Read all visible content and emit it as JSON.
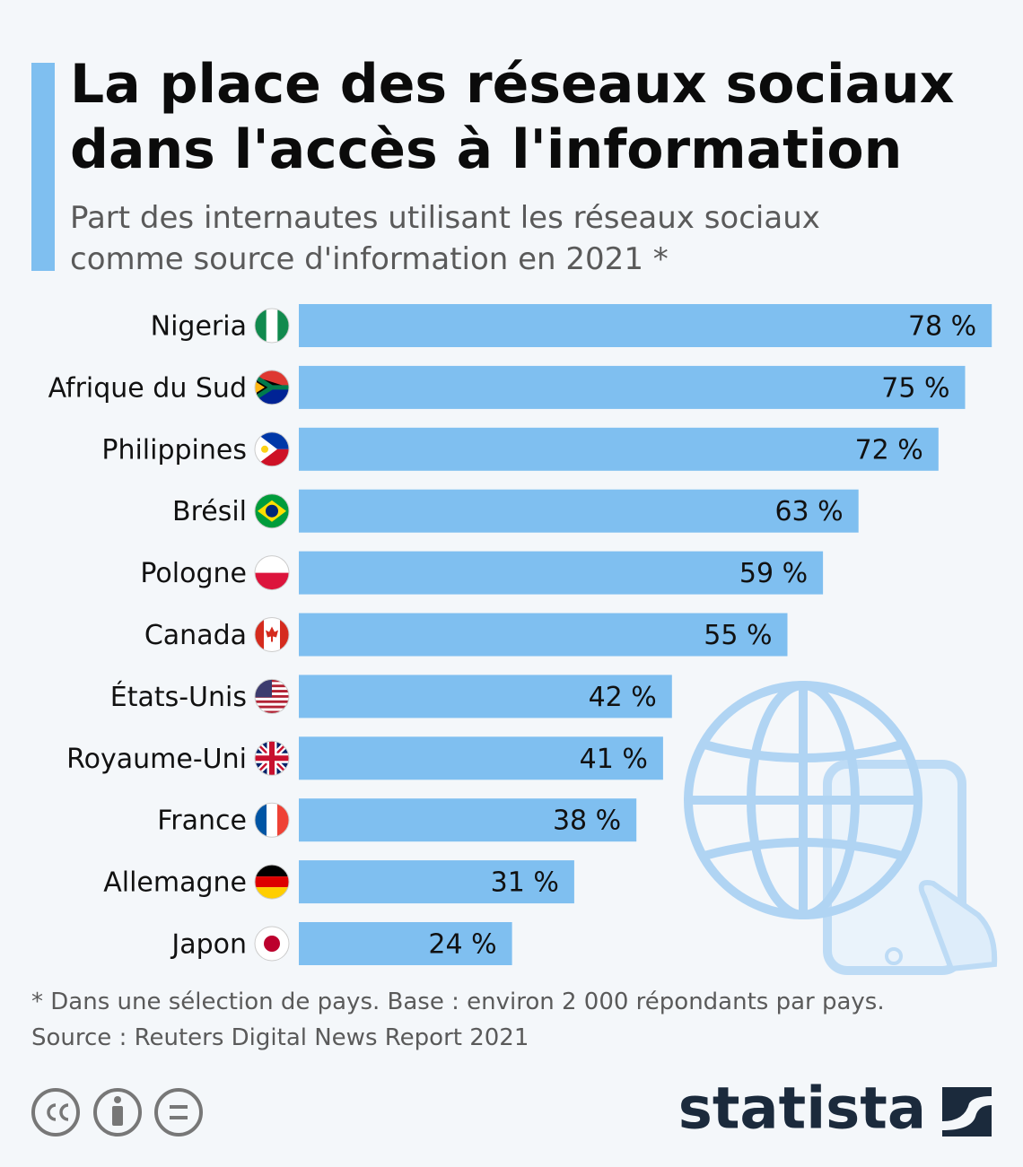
{
  "chart_data": {
    "type": "bar",
    "orientation": "horizontal",
    "title": "La place des réseaux sociaux dans l'accès à l'information",
    "subtitle": "Part des internautes utilisant les réseaux sociaux comme source d'information en 2021 *",
    "categories": [
      "Nigeria",
      "Afrique du Sud",
      "Philippines",
      "Brésil",
      "Pologne",
      "Canada",
      "États-Unis",
      "Royaume-Uni",
      "France",
      "Allemagne",
      "Japon"
    ],
    "values": [
      78,
      75,
      72,
      63,
      59,
      55,
      42,
      41,
      38,
      31,
      24
    ],
    "value_labels": [
      "78 %",
      "75 %",
      "72 %",
      "63 %",
      "59 %",
      "55 %",
      "42 %",
      "41 %",
      "38 %",
      "31 %",
      "24 %"
    ],
    "color": "#7fbff0",
    "note": "* Dans une sélection de pays. Base : environ 2 000 répondants par pays.",
    "source": "Source : Reuters Digital News Report 2021",
    "brand": "statista"
  }
}
